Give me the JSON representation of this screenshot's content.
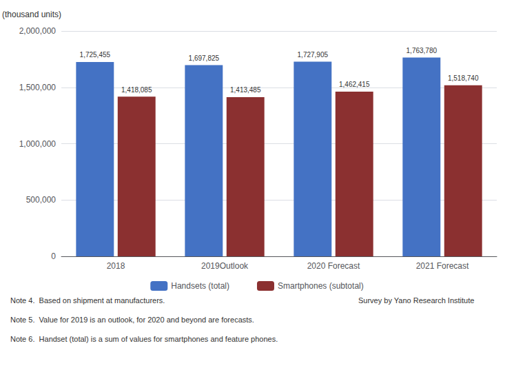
{
  "chart_data": {
    "type": "bar",
    "categories": [
      "2018",
      "2019Outlook",
      "2020 Forecast",
      "2021 Forecast"
    ],
    "series": [
      {
        "name": "Handsets (total)",
        "color": "#4472C4",
        "values": [
          1725455,
          1697825,
          1727905,
          1763780
        ],
        "value_labels": [
          "1,725,455",
          "1,697,825",
          "1,727,905",
          "1,763,780"
        ]
      },
      {
        "name": "Smartphones (subtotal)",
        "color": "#8B3030",
        "values": [
          1418085,
          1413485,
          1462415,
          1518740
        ],
        "value_labels": [
          "1,418,085",
          "1,413,485",
          "1,462,415",
          "1,518,740"
        ]
      }
    ],
    "ylabel": "(thousand units)",
    "ylim": [
      0,
      2000000
    ],
    "yticks": [
      0,
      {
        "value": 500000,
        "label": "500,000"
      },
      {
        "value": 1000000,
        "label": "1,000,000"
      },
      {
        "value": 1500000,
        "label": "1,500,000"
      },
      {
        "value": 2000000,
        "label": "2,000,000"
      }
    ],
    "grid": true,
    "legend": "bottom",
    "data_labels": true,
    "annotations": [
      "Note 4.  Based on shipment at manufacturers.",
      "Survey by Yano Research Institute",
      "Note 5.  Value for 2019 is an outlook, for 2020 and beyond are forecasts.",
      "Note 6.  Handset (total) is a sum of values for smartphones and feature phones."
    ]
  }
}
